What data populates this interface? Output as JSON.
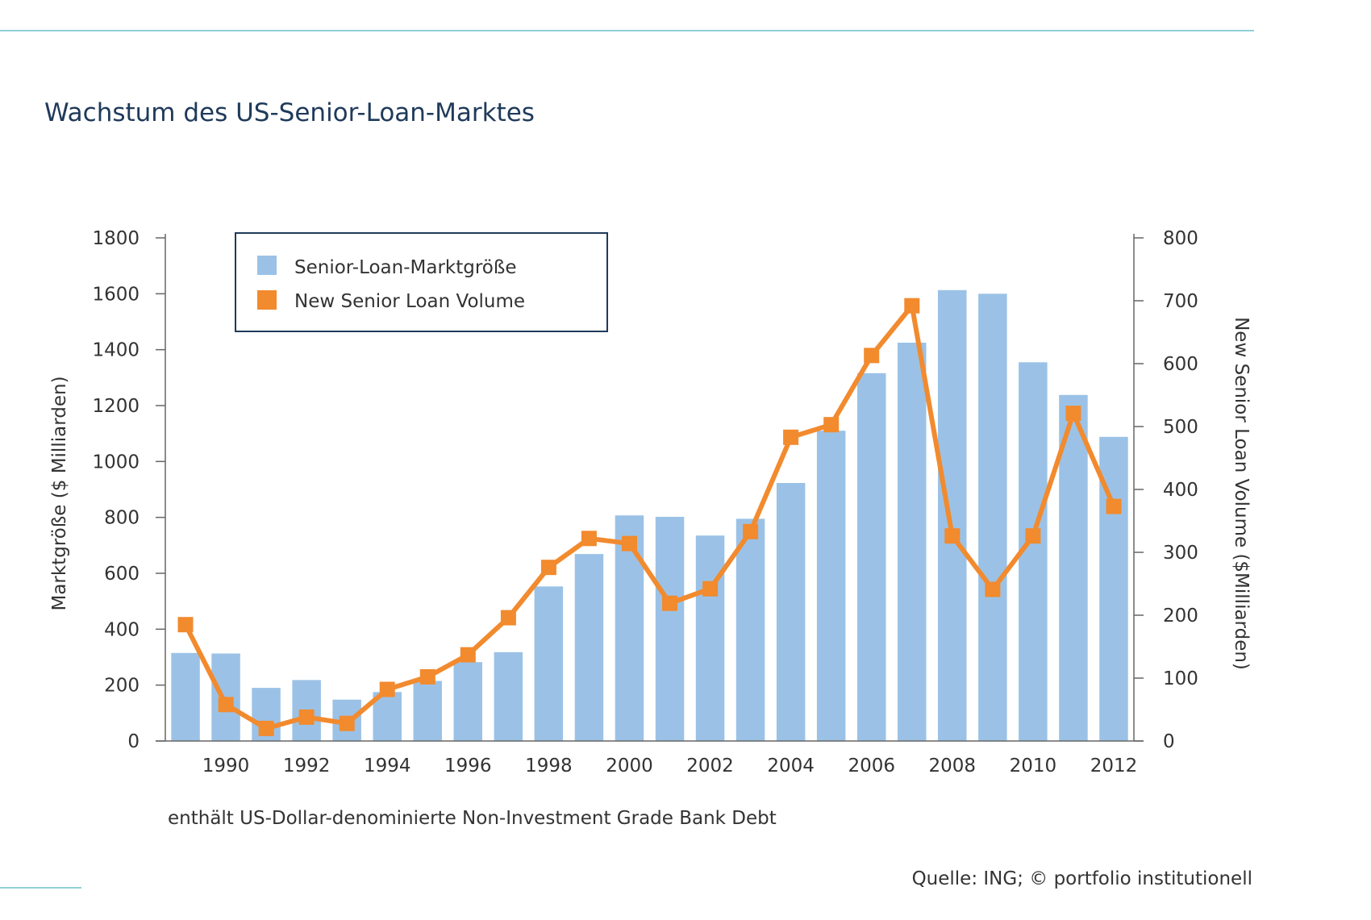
{
  "chart_data": {
    "type": "bar",
    "title": "Wachstum des US-Senior-Loan-Marktes",
    "note": "enthält US-Dollar-denominierte Non-Investment Grade Bank Debt",
    "source": "Quelle: ING; © portfolio institutionell",
    "ylabel": "Marktgröße ($ Milliarden)",
    "y2label": "New Senior Loan Volume ($Milliarden)",
    "ylim": [
      0,
      1800
    ],
    "y2lim": [
      0,
      800
    ],
    "yticks": [
      0,
      200,
      400,
      600,
      800,
      1000,
      1200,
      1400,
      1600,
      1800
    ],
    "y2ticks": [
      0,
      100,
      200,
      300,
      400,
      500,
      600,
      700,
      800
    ],
    "xtick_labels": [
      "1990",
      "1992",
      "1994",
      "1996",
      "1998",
      "2000",
      "2002",
      "2004",
      "2006",
      "2008",
      "2010",
      "2012"
    ],
    "categories": [
      "1989",
      "1990",
      "1991",
      "1992",
      "1993",
      "1994",
      "1995",
      "1996",
      "1997",
      "1998",
      "1999",
      "2000",
      "2001",
      "2002",
      "2003",
      "2004",
      "2005",
      "2006",
      "2007",
      "2008",
      "2009",
      "2010",
      "2011",
      "2012"
    ],
    "legend_position": "top-left",
    "grid": false,
    "series": [
      {
        "name": "Senior-Loan-Marktgröße",
        "type": "bar",
        "axis": "left",
        "color": "#9bc2e6",
        "values": [
          315,
          313,
          190,
          218,
          148,
          175,
          215,
          282,
          318,
          553,
          669,
          807,
          802,
          735,
          795,
          923,
          1110,
          1316,
          1425,
          1613,
          1600,
          1355,
          1238,
          1088
        ]
      },
      {
        "name": "New Senior Loan Volume",
        "type": "line",
        "axis": "right",
        "color": "#f28a2e",
        "values": [
          185,
          58,
          20,
          38,
          28,
          82,
          102,
          137,
          196,
          276,
          322,
          314,
          219,
          242,
          333,
          483,
          503,
          613,
          692,
          326,
          241,
          326,
          521,
          373
        ]
      }
    ]
  },
  "colors": {
    "title": "#1f3a5a",
    "accent_line": "#8fd1d6",
    "legend_border": "#1f3a5a",
    "axis": "#666666"
  }
}
